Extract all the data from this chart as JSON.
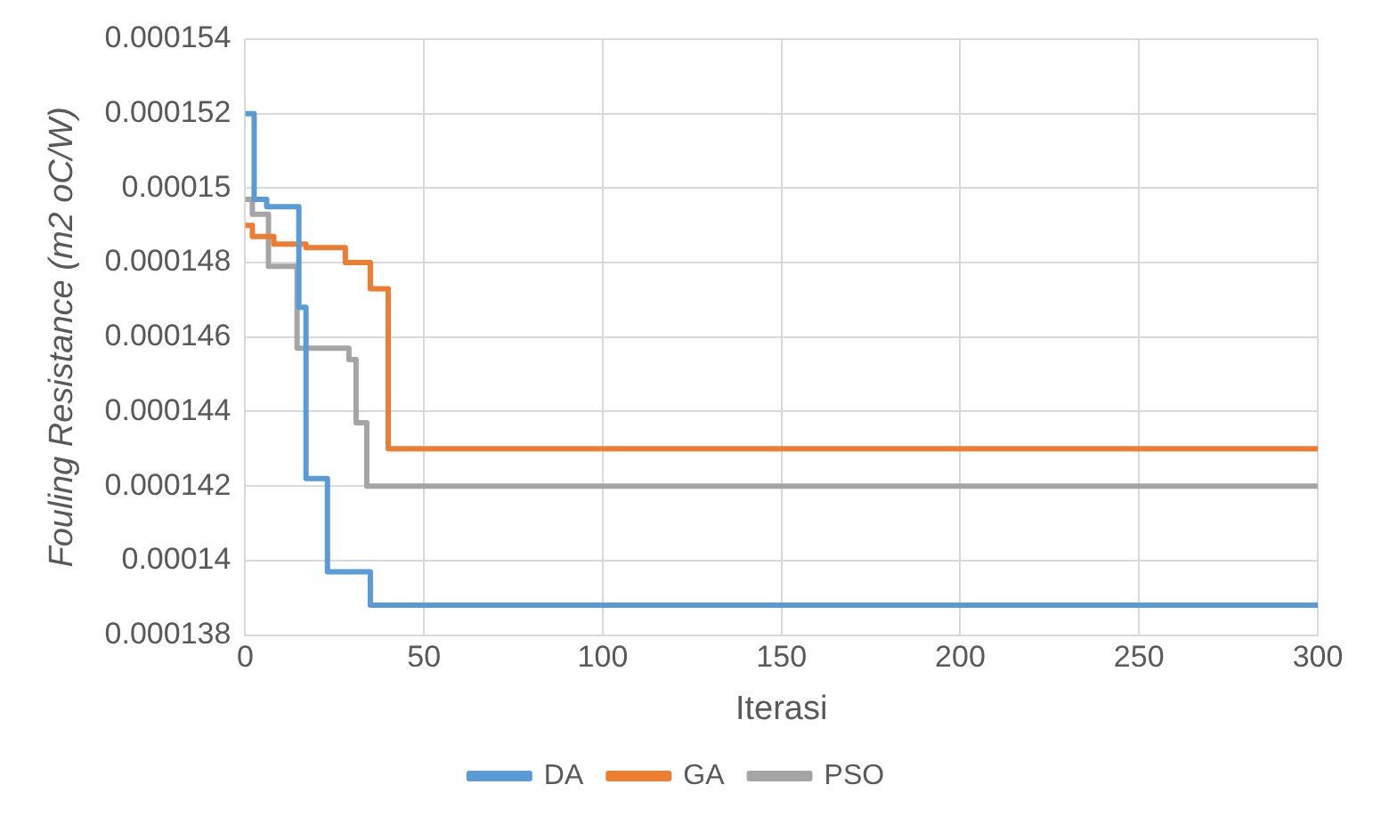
{
  "chart_data": {
    "type": "step",
    "xlabel": "Iterasi",
    "ylabel": "Fouling Resistance (m2 oC/W)",
    "xlim": [
      0,
      300
    ],
    "xticks": [
      0,
      50,
      100,
      150,
      200,
      250,
      300
    ],
    "ylim": [
      0.000138,
      0.000154
    ],
    "yticks": [
      0.000138,
      0.00014,
      0.000142,
      0.000144,
      0.000146,
      0.000148,
      0.00015,
      0.000152,
      0.000154
    ],
    "grid": true,
    "legend": "bottom",
    "marker": "none",
    "line_style": "solid",
    "series": [
      {
        "name": "DA",
        "color": "#5b9bd5",
        "x": [
          0,
          2.5,
          6,
          15,
          17,
          23,
          35,
          300
        ],
        "values": [
          0.000152,
          0.0001497,
          0.0001495,
          0.0001468,
          0.0001422,
          0.0001397,
          0.0001388,
          0.0001388
        ]
      },
      {
        "name": "GA",
        "color": "#ed7d31",
        "x": [
          0,
          2,
          8,
          17,
          28,
          35,
          40,
          300
        ],
        "values": [
          0.000149,
          0.0001487,
          0.0001485,
          0.0001484,
          0.000148,
          0.0001473,
          0.000143,
          0.000143
        ]
      },
      {
        "name": "PSO",
        "color": "#a5a5a5",
        "x": [
          0,
          2,
          6.5,
          14.5,
          29,
          31,
          34,
          300
        ],
        "values": [
          0.0001497,
          0.0001493,
          0.0001479,
          0.0001457,
          0.0001454,
          0.0001437,
          0.000142,
          0.000142
        ]
      }
    ]
  }
}
